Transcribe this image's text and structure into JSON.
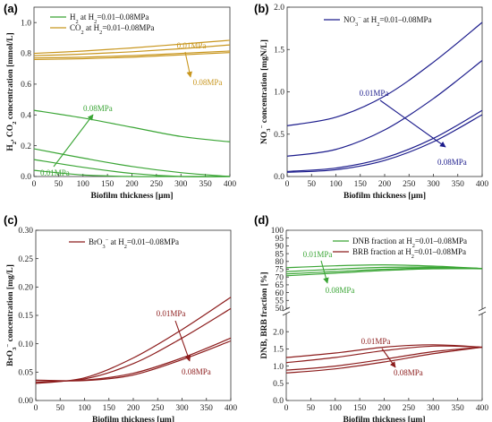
{
  "colors": {
    "green": "#3aa535",
    "gold": "#c8961e",
    "blue": "#1c1c8c",
    "red": "#8c1c1c"
  },
  "chart_data": [
    {
      "panel": "(a)",
      "type": "line",
      "xlabel": "Biofilm thickness [µm]",
      "ylabel": "H2, CO2 concentration [mmol/L]",
      "xlim": [
        0,
        400
      ],
      "ylim": [
        0,
        1.1
      ],
      "xticks": [
        "0",
        "50",
        "100",
        "150",
        "200",
        "250",
        "300",
        "350",
        "400"
      ],
      "yticks": [
        "0.0",
        "0.2",
        "0.4",
        "0.6",
        "0.8",
        "1.0"
      ],
      "legend": [
        {
          "label": "H2 at H2=0.01–0.08MPa",
          "color": "#3aa535"
        },
        {
          "label": "CO2 at H2=0.01–0.08MPa",
          "color": "#c8961e"
        }
      ],
      "annotations": [
        {
          "text": "0.01MPa",
          "color": "#c8961e"
        },
        {
          "text": "0.08MPa",
          "color": "#c8961e"
        },
        {
          "text": "0.08MPa",
          "color": "#3aa535"
        },
        {
          "text": "0.01MPa",
          "color": "#3aa535"
        }
      ],
      "series": [
        {
          "color": "#c8961e",
          "x": [
            0,
            100,
            200,
            300,
            400
          ],
          "y": [
            0.8,
            0.815,
            0.835,
            0.86,
            0.885
          ]
        },
        {
          "color": "#c8961e",
          "x": [
            0,
            100,
            200,
            300,
            400
          ],
          "y": [
            0.785,
            0.795,
            0.81,
            0.83,
            0.855
          ]
        },
        {
          "color": "#c8961e",
          "x": [
            0,
            100,
            200,
            300,
            400
          ],
          "y": [
            0.77,
            0.775,
            0.785,
            0.8,
            0.815
          ]
        },
        {
          "color": "#c8961e",
          "x": [
            0,
            100,
            200,
            300,
            400
          ],
          "y": [
            0.76,
            0.765,
            0.775,
            0.79,
            0.805
          ]
        },
        {
          "color": "#3aa535",
          "x": [
            0,
            100,
            200,
            300,
            400
          ],
          "y": [
            0.43,
            0.38,
            0.32,
            0.26,
            0.225
          ]
        },
        {
          "color": "#3aa535",
          "x": [
            0,
            100,
            200,
            300,
            400
          ],
          "y": [
            0.18,
            0.12,
            0.065,
            0.025,
            0.0
          ]
        },
        {
          "color": "#3aa535",
          "x": [
            0,
            100,
            200,
            300,
            400
          ],
          "y": [
            0.11,
            0.06,
            0.02,
            0.0,
            0.0
          ]
        },
        {
          "color": "#3aa535",
          "x": [
            0,
            100,
            200,
            300,
            400
          ],
          "y": [
            0.04,
            0.01,
            0.0,
            0.0,
            0.0
          ]
        }
      ]
    },
    {
      "panel": "(b)",
      "type": "line",
      "xlabel": "Biofilm thickness [µm]",
      "ylabel": "NO3- concentration [mgN/L]",
      "xlim": [
        0,
        400
      ],
      "ylim": [
        0,
        2.0
      ],
      "xticks": [
        "0",
        "50",
        "100",
        "150",
        "200",
        "250",
        "300",
        "350",
        "400"
      ],
      "yticks": [
        "0.0",
        "0.5",
        "1.0",
        "1.5",
        "2.0"
      ],
      "legend": [
        {
          "label": "NO3- at H2=0.01–0.08MPa",
          "color": "#1c1c8c"
        }
      ],
      "annotations": [
        {
          "text": "0.01MPa",
          "color": "#1c1c8c"
        },
        {
          "text": "0.08MPa",
          "color": "#1c1c8c"
        }
      ],
      "series": [
        {
          "color": "#1c1c8c",
          "x": [
            0,
            100,
            200,
            300,
            400
          ],
          "y": [
            0.6,
            0.7,
            0.95,
            1.35,
            1.82
          ]
        },
        {
          "color": "#1c1c8c",
          "x": [
            0,
            100,
            200,
            300,
            400
          ],
          "y": [
            0.24,
            0.32,
            0.55,
            0.92,
            1.37
          ]
        },
        {
          "color": "#1c1c8c",
          "x": [
            0,
            100,
            200,
            300,
            400
          ],
          "y": [
            0.06,
            0.1,
            0.22,
            0.45,
            0.78
          ]
        },
        {
          "color": "#1c1c8c",
          "x": [
            0,
            100,
            200,
            300,
            400
          ],
          "y": [
            0.05,
            0.08,
            0.19,
            0.41,
            0.73
          ]
        }
      ]
    },
    {
      "panel": "(c)",
      "type": "line",
      "xlabel": "Biofilm thickness [µm]",
      "ylabel": "BrO3- concentration [mg/L]",
      "xlim": [
        0,
        400
      ],
      "ylim": [
        0,
        0.3
      ],
      "xticks": [
        "0",
        "50",
        "100",
        "150",
        "200",
        "250",
        "300",
        "350",
        "400"
      ],
      "yticks": [
        "0.00",
        "0.05",
        "0.10",
        "0.15",
        "0.20",
        "0.25",
        "0.30"
      ],
      "legend": [
        {
          "label": "BrO3- at H2=0.01–0.08MPa",
          "color": "#8c1c1c"
        }
      ],
      "annotations": [
        {
          "text": "0.01MPa",
          "color": "#8c1c1c"
        },
        {
          "text": "0.08MPa",
          "color": "#8c1c1c"
        }
      ],
      "series": [
        {
          "color": "#8c1c1c",
          "x": [
            0,
            100,
            200,
            300,
            400
          ],
          "y": [
            0.03,
            0.04,
            0.075,
            0.125,
            0.182
          ]
        },
        {
          "color": "#8c1c1c",
          "x": [
            0,
            100,
            200,
            300,
            400
          ],
          "y": [
            0.032,
            0.038,
            0.065,
            0.11,
            0.162
          ]
        },
        {
          "color": "#8c1c1c",
          "x": [
            0,
            100,
            200,
            300,
            400
          ],
          "y": [
            0.035,
            0.036,
            0.048,
            0.075,
            0.11
          ]
        },
        {
          "color": "#8c1c1c",
          "x": [
            0,
            100,
            200,
            300,
            400
          ],
          "y": [
            0.036,
            0.035,
            0.045,
            0.072,
            0.105
          ]
        }
      ]
    },
    {
      "panel": "(d)",
      "type": "line",
      "xlabel": "Biofilm thickness [µm]",
      "ylabel": "DNB, BRB fraction [%]",
      "xlim": [
        0,
        400
      ],
      "ylim_top": [
        50,
        100
      ],
      "ylim_bottom": [
        0,
        2.5
      ],
      "xticks": [
        "0",
        "50",
        "100",
        "150",
        "200",
        "250",
        "300",
        "350",
        "400"
      ],
      "yticks_top": [
        "50",
        "55",
        "60",
        "65",
        "70",
        "75",
        "80",
        "85",
        "90",
        "95",
        "100"
      ],
      "yticks_bottom": [
        "0.0",
        "0.5",
        "1.0",
        "1.5",
        "2.0"
      ],
      "legend": [
        {
          "label": "DNB fraction at H2=0.01–0.08MPa",
          "color": "#3aa535"
        },
        {
          "label": "BRB fraction at H2=0.01–0.08MPa",
          "color": "#8c1c1c"
        }
      ],
      "annotations": [
        {
          "text": "0.01MPa",
          "color": "#3aa535"
        },
        {
          "text": "0.08MPa",
          "color": "#3aa535"
        },
        {
          "text": "0.01MPa",
          "color": "#8c1c1c"
        },
        {
          "text": "0.08MPa",
          "color": "#8c1c1c"
        }
      ],
      "series_top": [
        {
          "color": "#3aa535",
          "x": [
            0,
            100,
            200,
            300,
            400
          ],
          "y": [
            76.0,
            77.2,
            77.8,
            77.0,
            75.5
          ]
        },
        {
          "color": "#3aa535",
          "x": [
            0,
            100,
            200,
            300,
            400
          ],
          "y": [
            73.5,
            75.0,
            76.2,
            76.3,
            75.5
          ]
        },
        {
          "color": "#3aa535",
          "x": [
            0,
            100,
            200,
            300,
            400
          ],
          "y": [
            72.0,
            73.5,
            75.0,
            75.8,
            75.5
          ]
        },
        {
          "color": "#3aa535",
          "x": [
            0,
            100,
            200,
            300,
            400
          ],
          "y": [
            70.8,
            72.5,
            74.2,
            75.3,
            75.3
          ]
        }
      ],
      "series_bottom": [
        {
          "color": "#8c1c1c",
          "x": [
            0,
            100,
            200,
            300,
            400
          ],
          "y": [
            1.25,
            1.38,
            1.55,
            1.62,
            1.55
          ]
        },
        {
          "color": "#8c1c1c",
          "x": [
            0,
            100,
            200,
            300,
            400
          ],
          "y": [
            1.1,
            1.25,
            1.45,
            1.58,
            1.55
          ]
        },
        {
          "color": "#8c1c1c",
          "x": [
            0,
            100,
            200,
            300,
            400
          ],
          "y": [
            0.88,
            1.0,
            1.2,
            1.42,
            1.55
          ]
        },
        {
          "color": "#8c1c1c",
          "x": [
            0,
            100,
            200,
            300,
            400
          ],
          "y": [
            0.8,
            0.92,
            1.12,
            1.36,
            1.55
          ]
        }
      ]
    }
  ],
  "labels": {
    "a": "(a)",
    "b": "(b)",
    "c": "(c)",
    "d": "(d)"
  }
}
